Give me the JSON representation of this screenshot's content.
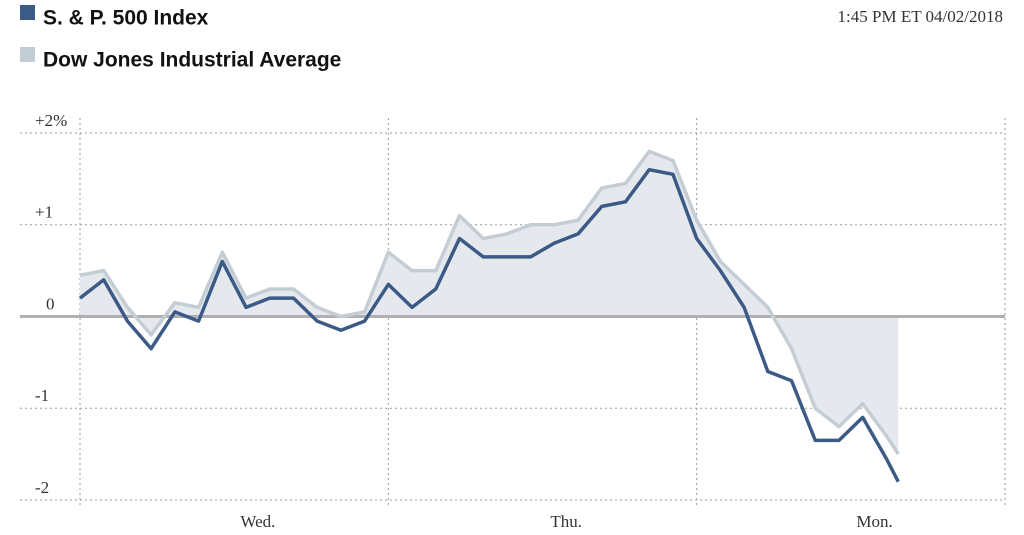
{
  "chart_data": {
    "type": "line",
    "timestamp": "1:45 PM ET  04/02/2018",
    "x": [
      0,
      0.5,
      1,
      1.5,
      2,
      2.5,
      3,
      3.5,
      4,
      4.5,
      5,
      5.5,
      6,
      6.5,
      7,
      7.5,
      8,
      8.5,
      9,
      9.5,
      10,
      10.5,
      11,
      11.5,
      12,
      12.5,
      13,
      13.5,
      14,
      14.5,
      15,
      15.5,
      16,
      16.5,
      17,
      17.25
    ],
    "xlim": [
      0,
      19.5
    ],
    "xticks": [
      {
        "value": 3.75,
        "label": "Wed."
      },
      {
        "value": 10.25,
        "label": "Thu."
      },
      {
        "value": 16.75,
        "label": "Mon."
      }
    ],
    "day_bounds": [
      0,
      6.5,
      13,
      19.5
    ],
    "ylim": [
      -2,
      2
    ],
    "yticks": [
      {
        "value": 2,
        "label": "+2%"
      },
      {
        "value": 1,
        "label": "+1"
      },
      0,
      {
        "value": -1,
        "label": "-1"
      },
      {
        "value": -2,
        "label": "-2"
      }
    ],
    "grid": true,
    "series": [
      {
        "name": "S. & P. 500 Index",
        "color": "#3b5a85",
        "values": [
          0.2,
          0.4,
          -0.05,
          -0.35,
          0.05,
          -0.05,
          0.6,
          0.1,
          0.2,
          0.2,
          -0.05,
          -0.15,
          -0.05,
          0.35,
          0.1,
          0.3,
          0.85,
          0.65,
          0.65,
          0.65,
          0.8,
          0.9,
          1.2,
          1.25,
          1.6,
          1.55,
          0.85,
          0.5,
          0.1,
          -0.6,
          -0.7,
          -1.35,
          -1.35,
          -1.1,
          -1.55,
          -1.8
        ]
      },
      {
        "name": "Dow Jones Industrial Average",
        "color": "#c5cdd4",
        "fill": "#e5e9ee",
        "values": [
          0.45,
          0.5,
          0.1,
          -0.2,
          0.15,
          0.1,
          0.7,
          0.2,
          0.3,
          0.3,
          0.1,
          0.0,
          0.05,
          0.7,
          0.5,
          0.5,
          1.1,
          0.85,
          0.9,
          1.0,
          1.0,
          1.05,
          1.4,
          1.45,
          1.8,
          1.7,
          1.05,
          0.6,
          0.35,
          0.1,
          -0.35,
          -1.0,
          -1.2,
          -0.95,
          -1.3,
          -1.5
        ]
      }
    ]
  }
}
